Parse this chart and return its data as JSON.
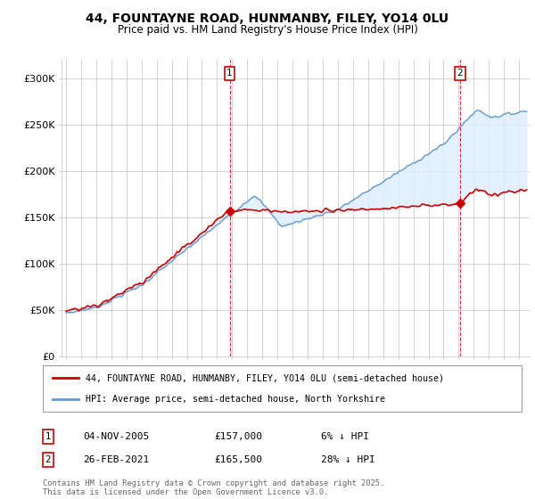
{
  "title_line1": "44, FOUNTAYNE ROAD, HUNMANBY, FILEY, YO14 0LU",
  "title_line2": "Price paid vs. HM Land Registry's House Price Index (HPI)",
  "legend_label1": "44, FOUNTAYNE ROAD, HUNMANBY, FILEY, YO14 0LU (semi-detached house)",
  "legend_label2": "HPI: Average price, semi-detached house, North Yorkshire",
  "footer": "Contains HM Land Registry data © Crown copyright and database right 2025.\nThis data is licensed under the Open Government Licence v3.0.",
  "annotation1": {
    "num": "1",
    "date": "04-NOV-2005",
    "price": "£157,000",
    "pct": "6% ↓ HPI"
  },
  "annotation2": {
    "num": "2",
    "date": "26-FEB-2021",
    "price": "£165,500",
    "pct": "28% ↓ HPI"
  },
  "property_color": "#cc0000",
  "hpi_color": "#6699cc",
  "hpi_fill_color": "#ddeeff",
  "ylim": [
    0,
    320000
  ],
  "yticks": [
    0,
    50000,
    100000,
    150000,
    200000,
    250000,
    300000
  ],
  "ytick_labels": [
    "£0",
    "£50K",
    "£100K",
    "£150K",
    "£200K",
    "£250K",
    "£300K"
  ],
  "background_color": "#ffffff",
  "grid_color": "#cccccc"
}
